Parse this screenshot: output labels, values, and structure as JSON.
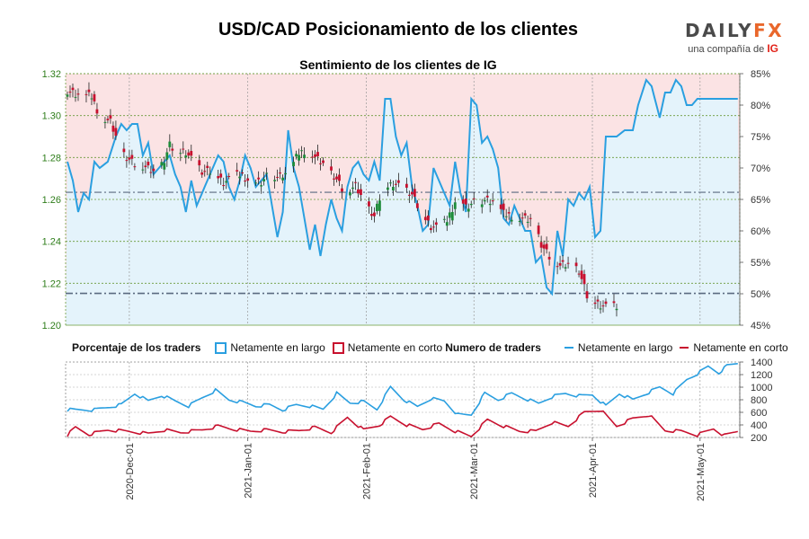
{
  "header": {
    "title": "USD/CAD Posicionamiento de los clientes",
    "subtitle": "Sentimiento de los clientes de IG",
    "brand_main": "DAILY",
    "brand_fx": "FX",
    "brand_tag": "una compañía de",
    "brand_ig": "IG"
  },
  "legend": {
    "group1": "Porcentaje de los traders",
    "item_long_pct": "Netamente en largo",
    "item_short_pct": "Netamente en corto",
    "group2": "Numero de traders",
    "item_long_n": "Netamente en largo",
    "item_short_n": "Netamente en corto"
  },
  "colors": {
    "long": "#2a9fe0",
    "short": "#c8102e",
    "long_fill": "#e4f3fb",
    "short_fill": "#fbe3e4",
    "candle_up": "#1e8c3a",
    "candle_down": "#c8102e",
    "axis_left": "#2e7d1a",
    "grid": "#6a9a3a"
  },
  "chart_data": [
    {
      "type": "candlestick",
      "title": "Sentimiento de los clientes de IG",
      "y_left": {
        "ticks": [
          "1.20",
          "1.22",
          "1.24",
          "1.26",
          "1.28",
          "1.30",
          "1.32"
        ],
        "range": [
          1.2,
          1.32
        ]
      },
      "y_right": {
        "ticks": [
          "45%",
          "50%",
          "55%",
          "60%",
          "65%",
          "70%",
          "75%",
          "80%",
          "85%"
        ],
        "range": [
          45,
          85
        ]
      },
      "x_ticks": [
        "2020-Dec-01",
        "2021-Jan-01",
        "2021-Feb-01",
        "2021-Mar-01",
        "2021-Apr-01",
        "2021-May-01"
      ],
      "reference_lines": [
        1.2634,
        1.2152
      ],
      "price_close_anchors": [
        {
          "d": 0,
          "v": 1.312
        },
        {
          "d": 4,
          "v": 1.31
        },
        {
          "d": 9,
          "v": 1.309
        },
        {
          "d": 12,
          "v": 1.3
        },
        {
          "d": 16,
          "v": 1.297
        },
        {
          "d": 20,
          "v": 1.283
        },
        {
          "d": 25,
          "v": 1.277
        },
        {
          "d": 29,
          "v": 1.275
        },
        {
          "d": 33,
          "v": 1.272
        },
        {
          "d": 36,
          "v": 1.279
        },
        {
          "d": 38,
          "v": 1.286
        },
        {
          "d": 40,
          "v": 1.283
        },
        {
          "d": 44,
          "v": 1.283
        },
        {
          "d": 47,
          "v": 1.278
        },
        {
          "d": 50,
          "v": 1.273
        },
        {
          "d": 54,
          "v": 1.273
        },
        {
          "d": 58,
          "v": 1.268
        },
        {
          "d": 62,
          "v": 1.271
        },
        {
          "d": 65,
          "v": 1.272
        },
        {
          "d": 68,
          "v": 1.268
        },
        {
          "d": 72,
          "v": 1.268
        },
        {
          "d": 75,
          "v": 1.272
        },
        {
          "d": 78,
          "v": 1.271
        },
        {
          "d": 82,
          "v": 1.273
        },
        {
          "d": 86,
          "v": 1.282
        },
        {
          "d": 89,
          "v": 1.284
        },
        {
          "d": 93,
          "v": 1.279
        },
        {
          "d": 96,
          "v": 1.276
        },
        {
          "d": 100,
          "v": 1.27
        },
        {
          "d": 103,
          "v": 1.263
        },
        {
          "d": 107,
          "v": 1.266
        },
        {
          "d": 110,
          "v": 1.259
        },
        {
          "d": 114,
          "v": 1.252
        },
        {
          "d": 117,
          "v": 1.265
        },
        {
          "d": 121,
          "v": 1.268
        },
        {
          "d": 124,
          "v": 1.266
        },
        {
          "d": 128,
          "v": 1.262
        },
        {
          "d": 131,
          "v": 1.254
        },
        {
          "d": 135,
          "v": 1.247
        },
        {
          "d": 138,
          "v": 1.246
        },
        {
          "d": 141,
          "v": 1.25
        },
        {
          "d": 145,
          "v": 1.262
        },
        {
          "d": 148,
          "v": 1.256
        },
        {
          "d": 152,
          "v": 1.259
        },
        {
          "d": 155,
          "v": 1.26
        },
        {
          "d": 159,
          "v": 1.259
        },
        {
          "d": 162,
          "v": 1.253
        },
        {
          "d": 166,
          "v": 1.252
        },
        {
          "d": 169,
          "v": 1.251
        },
        {
          "d": 173,
          "v": 1.25
        },
        {
          "d": 176,
          "v": 1.239
        },
        {
          "d": 180,
          "v": 1.231
        },
        {
          "d": 183,
          "v": 1.228
        },
        {
          "d": 187,
          "v": 1.229
        },
        {
          "d": 190,
          "v": 1.226
        },
        {
          "d": 193,
          "v": 1.214
        },
        {
          "d": 196,
          "v": 1.211
        },
        {
          "d": 200,
          "v": 1.209
        }
      ],
      "long_pct_anchors": [
        {
          "d": 0,
          "v": 71
        },
        {
          "d": 2,
          "v": 68
        },
        {
          "d": 4,
          "v": 63
        },
        {
          "d": 6,
          "v": 66
        },
        {
          "d": 8,
          "v": 65
        },
        {
          "d": 10,
          "v": 71
        },
        {
          "d": 12,
          "v": 70
        },
        {
          "d": 15,
          "v": 71
        },
        {
          "d": 18,
          "v": 75
        },
        {
          "d": 20,
          "v": 77
        },
        {
          "d": 22,
          "v": 76
        },
        {
          "d": 24,
          "v": 77
        },
        {
          "d": 26,
          "v": 77
        },
        {
          "d": 28,
          "v": 72
        },
        {
          "d": 30,
          "v": 74
        },
        {
          "d": 32,
          "v": 69
        },
        {
          "d": 34,
          "v": 70
        },
        {
          "d": 36,
          "v": 71
        },
        {
          "d": 38,
          "v": 72
        },
        {
          "d": 40,
          "v": 69
        },
        {
          "d": 42,
          "v": 67
        },
        {
          "d": 44,
          "v": 63
        },
        {
          "d": 46,
          "v": 68
        },
        {
          "d": 48,
          "v": 64
        },
        {
          "d": 50,
          "v": 66
        },
        {
          "d": 52,
          "v": 68
        },
        {
          "d": 54,
          "v": 70
        },
        {
          "d": 56,
          "v": 72
        },
        {
          "d": 58,
          "v": 71
        },
        {
          "d": 60,
          "v": 67
        },
        {
          "d": 62,
          "v": 65
        },
        {
          "d": 64,
          "v": 68
        },
        {
          "d": 66,
          "v": 72
        },
        {
          "d": 68,
          "v": 70
        },
        {
          "d": 70,
          "v": 67
        },
        {
          "d": 72,
          "v": 68
        },
        {
          "d": 74,
          "v": 69
        },
        {
          "d": 76,
          "v": 64
        },
        {
          "d": 78,
          "v": 59
        },
        {
          "d": 80,
          "v": 63
        },
        {
          "d": 82,
          "v": 76
        },
        {
          "d": 84,
          "v": 70
        },
        {
          "d": 86,
          "v": 67
        },
        {
          "d": 88,
          "v": 62
        },
        {
          "d": 90,
          "v": 57
        },
        {
          "d": 92,
          "v": 61
        },
        {
          "d": 94,
          "v": 56
        },
        {
          "d": 96,
          "v": 61
        },
        {
          "d": 98,
          "v": 65
        },
        {
          "d": 100,
          "v": 62
        },
        {
          "d": 102,
          "v": 60
        },
        {
          "d": 104,
          "v": 67
        },
        {
          "d": 106,
          "v": 70
        },
        {
          "d": 108,
          "v": 71
        },
        {
          "d": 110,
          "v": 69
        },
        {
          "d": 112,
          "v": 68
        },
        {
          "d": 114,
          "v": 71
        },
        {
          "d": 116,
          "v": 68
        },
        {
          "d": 118,
          "v": 81
        },
        {
          "d": 120,
          "v": 81
        },
        {
          "d": 122,
          "v": 75
        },
        {
          "d": 124,
          "v": 72
        },
        {
          "d": 126,
          "v": 74
        },
        {
          "d": 128,
          "v": 67
        },
        {
          "d": 130,
          "v": 64
        },
        {
          "d": 132,
          "v": 60
        },
        {
          "d": 134,
          "v": 61
        },
        {
          "d": 136,
          "v": 70
        },
        {
          "d": 138,
          "v": 68
        },
        {
          "d": 140,
          "v": 66
        },
        {
          "d": 142,
          "v": 64
        },
        {
          "d": 144,
          "v": 71
        },
        {
          "d": 146,
          "v": 66
        },
        {
          "d": 148,
          "v": 63
        },
        {
          "d": 150,
          "v": 81
        },
        {
          "d": 152,
          "v": 80
        },
        {
          "d": 154,
          "v": 74
        },
        {
          "d": 156,
          "v": 75
        },
        {
          "d": 158,
          "v": 73
        },
        {
          "d": 160,
          "v": 70
        },
        {
          "d": 162,
          "v": 62
        },
        {
          "d": 164,
          "v": 61
        },
        {
          "d": 166,
          "v": 64
        },
        {
          "d": 168,
          "v": 62
        },
        {
          "d": 170,
          "v": 60
        },
        {
          "d": 172,
          "v": 60
        },
        {
          "d": 174,
          "v": 55
        },
        {
          "d": 176,
          "v": 56
        },
        {
          "d": 178,
          "v": 51
        },
        {
          "d": 180,
          "v": 50
        },
        {
          "d": 182,
          "v": 60
        },
        {
          "d": 184,
          "v": 56
        },
        {
          "d": 186,
          "v": 65
        },
        {
          "d": 188,
          "v": 64
        },
        {
          "d": 190,
          "v": 66
        },
        {
          "d": 192,
          "v": 65
        },
        {
          "d": 194,
          "v": 67
        },
        {
          "d": 196,
          "v": 59
        },
        {
          "d": 198,
          "v": 60
        },
        {
          "d": 200,
          "v": 75
        }
      ],
      "long_pct_tail": [
        {
          "d": 200,
          "v": 75
        },
        {
          "d": 204,
          "v": 75
        },
        {
          "d": 207,
          "v": 76
        },
        {
          "d": 210,
          "v": 76
        },
        {
          "d": 212,
          "v": 80
        },
        {
          "d": 215,
          "v": 84
        },
        {
          "d": 217,
          "v": 83
        },
        {
          "d": 220,
          "v": 78
        },
        {
          "d": 222,
          "v": 82
        },
        {
          "d": 224,
          "v": 82
        },
        {
          "d": 226,
          "v": 84
        },
        {
          "d": 228,
          "v": 83
        },
        {
          "d": 230,
          "v": 80
        },
        {
          "d": 232,
          "v": 80
        },
        {
          "d": 234,
          "v": 81
        }
      ]
    },
    {
      "type": "line",
      "title": "Numero de traders",
      "y_ticks": [
        "200",
        "400",
        "600",
        "800",
        "1000",
        "1200",
        "1400"
      ],
      "ylim": [
        200,
        1400
      ],
      "series": [
        {
          "name": "Netamente en largo",
          "anchors": [
            {
              "d": 0,
              "v": 640
            },
            {
              "d": 10,
              "v": 640
            },
            {
              "d": 20,
              "v": 720
            },
            {
              "d": 25,
              "v": 900
            },
            {
              "d": 30,
              "v": 780
            },
            {
              "d": 35,
              "v": 870
            },
            {
              "d": 40,
              "v": 780
            },
            {
              "d": 45,
              "v": 700
            },
            {
              "d": 50,
              "v": 830
            },
            {
              "d": 55,
              "v": 950
            },
            {
              "d": 60,
              "v": 800
            },
            {
              "d": 65,
              "v": 760
            },
            {
              "d": 70,
              "v": 700
            },
            {
              "d": 75,
              "v": 720
            },
            {
              "d": 80,
              "v": 640
            },
            {
              "d": 85,
              "v": 720
            },
            {
              "d": 90,
              "v": 700
            },
            {
              "d": 95,
              "v": 650
            },
            {
              "d": 100,
              "v": 900
            },
            {
              "d": 105,
              "v": 750
            },
            {
              "d": 110,
              "v": 770
            },
            {
              "d": 115,
              "v": 650
            },
            {
              "d": 120,
              "v": 1000
            },
            {
              "d": 125,
              "v": 800
            },
            {
              "d": 130,
              "v": 690
            },
            {
              "d": 135,
              "v": 820
            },
            {
              "d": 140,
              "v": 780
            },
            {
              "d": 145,
              "v": 560
            },
            {
              "d": 150,
              "v": 560
            },
            {
              "d": 155,
              "v": 900
            },
            {
              "d": 160,
              "v": 800
            },
            {
              "d": 165,
              "v": 900
            },
            {
              "d": 170,
              "v": 820
            },
            {
              "d": 175,
              "v": 740
            },
            {
              "d": 180,
              "v": 850
            },
            {
              "d": 185,
              "v": 900
            },
            {
              "d": 190,
              "v": 860
            },
            {
              "d": 195,
              "v": 880
            },
            {
              "d": 200,
              "v": 700
            },
            {
              "d": 205,
              "v": 900
            },
            {
              "d": 210,
              "v": 800
            },
            {
              "d": 215,
              "v": 900
            },
            {
              "d": 220,
              "v": 1000
            },
            {
              "d": 225,
              "v": 900
            },
            {
              "d": 230,
              "v": 1120
            },
            {
              "d": 235,
              "v": 1240
            },
            {
              "d": 238,
              "v": 1330
            },
            {
              "d": 242,
              "v": 1230
            },
            {
              "d": 245,
              "v": 1340
            },
            {
              "d": 249,
              "v": 1380
            }
          ]
        },
        {
          "name": "Netamente en corto",
          "anchors": [
            {
              "d": 0,
              "v": 240
            },
            {
              "d": 3,
              "v": 360
            },
            {
              "d": 8,
              "v": 250
            },
            {
              "d": 15,
              "v": 320
            },
            {
              "d": 22,
              "v": 300
            },
            {
              "d": 30,
              "v": 260
            },
            {
              "d": 36,
              "v": 320
            },
            {
              "d": 42,
              "v": 280
            },
            {
              "d": 50,
              "v": 320
            },
            {
              "d": 56,
              "v": 380
            },
            {
              "d": 62,
              "v": 330
            },
            {
              "d": 68,
              "v": 300
            },
            {
              "d": 74,
              "v": 320
            },
            {
              "d": 80,
              "v": 290
            },
            {
              "d": 86,
              "v": 310
            },
            {
              "d": 92,
              "v": 360
            },
            {
              "d": 98,
              "v": 280
            },
            {
              "d": 104,
              "v": 520
            },
            {
              "d": 110,
              "v": 320
            },
            {
              "d": 116,
              "v": 400
            },
            {
              "d": 120,
              "v": 530
            },
            {
              "d": 126,
              "v": 400
            },
            {
              "d": 132,
              "v": 330
            },
            {
              "d": 138,
              "v": 420
            },
            {
              "d": 144,
              "v": 300
            },
            {
              "d": 150,
              "v": 220
            },
            {
              "d": 156,
              "v": 480
            },
            {
              "d": 162,
              "v": 380
            },
            {
              "d": 168,
              "v": 300
            },
            {
              "d": 174,
              "v": 300
            },
            {
              "d": 180,
              "v": 440
            },
            {
              "d": 186,
              "v": 380
            },
            {
              "d": 192,
              "v": 600
            },
            {
              "d": 198,
              "v": 640
            },
            {
              "d": 204,
              "v": 380
            },
            {
              "d": 210,
              "v": 500
            },
            {
              "d": 216,
              "v": 560
            },
            {
              "d": 222,
              "v": 310
            },
            {
              "d": 228,
              "v": 300
            },
            {
              "d": 234,
              "v": 240
            },
            {
              "d": 240,
              "v": 340
            },
            {
              "d": 244,
              "v": 230
            },
            {
              "d": 249,
              "v": 300
            }
          ]
        }
      ]
    }
  ]
}
